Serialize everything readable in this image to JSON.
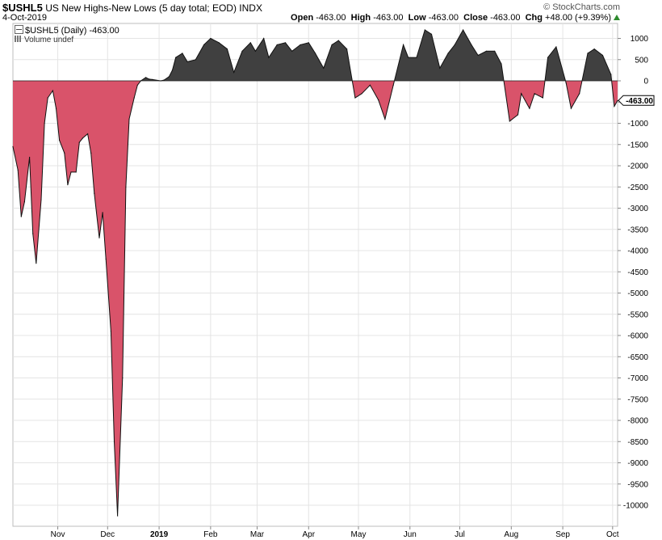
{
  "header": {
    "symbol": "$USHL5",
    "description": "US New Highs-New Lows (5 day total; EOD)",
    "exchange": "INDX",
    "date": "4-Oct-2019",
    "brand": "© StockCharts.com",
    "open_label": "Open",
    "open_value": "-463.00",
    "high_label": "High",
    "high_value": "-463.00",
    "low_label": "Low",
    "low_value": "-463.00",
    "close_label": "Close",
    "close_value": "-463.00",
    "chg_label": "Chg",
    "chg_value": "+48.00 (+9.39%)"
  },
  "legend": {
    "series_label": "$USHL5 (Daily) -463.00",
    "volume_label": "Volume undef"
  },
  "colors": {
    "positive_fill": "#404040",
    "negative_fill": "#d9536a",
    "grid": "#e4e4e4",
    "chg_up": "#2e8b2e"
  },
  "chart_data": {
    "type": "area",
    "title": "US New Highs-New Lows (5 day total; EOD)",
    "ylim": [
      -10300,
      1300
    ],
    "y_ticks": [
      1000,
      500,
      0,
      -500,
      -1000,
      -1500,
      -2000,
      -2500,
      -3000,
      -3500,
      -4000,
      -4500,
      -5000,
      -5500,
      -6000,
      -6500,
      -7000,
      -7500,
      -8000,
      -8500,
      -9000,
      -9500,
      -10000
    ],
    "x_ticks": [
      "Nov",
      "Dec",
      "2019",
      "Feb",
      "Mar",
      "Apr",
      "May",
      "Jun",
      "Jul",
      "Aug",
      "Sep",
      "Oct"
    ],
    "last_value_label": "-463.00",
    "grid": true,
    "series": [
      {
        "x": [
          "2018-10-05",
          "2018-10-08",
          "2018-10-10",
          "2018-10-12",
          "2018-10-15",
          "2018-10-17",
          "2018-10-19",
          "2018-10-22",
          "2018-10-24",
          "2018-10-26",
          "2018-10-29",
          "2018-10-31",
          "2018-11-02",
          "2018-11-05",
          "2018-11-07",
          "2018-11-09",
          "2018-11-12",
          "2018-11-14",
          "2018-11-16",
          "2018-11-19",
          "2018-11-21",
          "2018-11-23",
          "2018-11-26",
          "2018-11-28",
          "2018-11-30",
          "2018-12-03",
          "2018-12-05",
          "2018-12-07",
          "2018-12-10",
          "2018-12-12",
          "2018-12-14",
          "2018-12-17",
          "2018-12-19",
          "2018-12-21",
          "2018-12-24",
          "2018-12-26",
          "2018-12-28",
          "2019-01-02",
          "2019-01-04",
          "2019-01-07",
          "2019-01-09",
          "2019-01-11",
          "2019-01-15",
          "2019-01-18",
          "2019-01-23",
          "2019-01-28",
          "2019-02-01",
          "2019-02-06",
          "2019-02-11",
          "2019-02-15",
          "2019-02-20",
          "2019-02-25",
          "2019-02-28",
          "2019-03-05",
          "2019-03-08",
          "2019-03-13",
          "2019-03-18",
          "2019-03-22",
          "2019-03-27",
          "2019-04-01",
          "2019-04-05",
          "2019-04-10",
          "2019-04-15",
          "2019-04-19",
          "2019-04-24",
          "2019-04-29",
          "2019-05-03",
          "2019-05-08",
          "2019-05-13",
          "2019-05-17",
          "2019-05-22",
          "2019-05-28",
          "2019-05-31",
          "2019-06-05",
          "2019-06-10",
          "2019-06-14",
          "2019-06-19",
          "2019-06-24",
          "2019-06-28",
          "2019-07-03",
          "2019-07-08",
          "2019-07-12",
          "2019-07-17",
          "2019-07-22",
          "2019-07-26",
          "2019-07-31",
          "2019-08-05",
          "2019-08-07",
          "2019-08-12",
          "2019-08-15",
          "2019-08-20",
          "2019-08-23",
          "2019-08-28",
          "2019-09-03",
          "2019-09-06",
          "2019-09-11",
          "2019-09-16",
          "2019-09-20",
          "2019-09-25",
          "2019-09-30",
          "2019-10-02",
          "2019-10-04"
        ],
        "values": [
          -1550,
          -2100,
          -3200,
          -2850,
          -1800,
          -3600,
          -4300,
          -2800,
          -1000,
          -400,
          -230,
          -650,
          -1400,
          -1700,
          -2450,
          -2150,
          -2150,
          -1450,
          -1350,
          -1250,
          -1700,
          -2650,
          -3700,
          -3100,
          -4200,
          -5900,
          -8500,
          -10250,
          -7000,
          -2500,
          -900,
          -400,
          -100,
          0,
          80,
          40,
          30,
          0,
          20,
          100,
          250,
          550,
          650,
          450,
          500,
          850,
          1000,
          900,
          750,
          200,
          700,
          900,
          700,
          1000,
          550,
          850,
          900,
          700,
          850,
          900,
          650,
          300,
          850,
          950,
          750,
          -400,
          -300,
          -100,
          -450,
          -900,
          -100,
          850,
          550,
          550,
          1200,
          1100,
          300,
          650,
          850,
          1200,
          850,
          600,
          700,
          700,
          400,
          -950,
          -800,
          -300,
          -650,
          -300,
          -400,
          550,
          800,
          -50,
          -650,
          -300,
          650,
          750,
          600,
          150,
          -600,
          -463
        ]
      }
    ]
  }
}
